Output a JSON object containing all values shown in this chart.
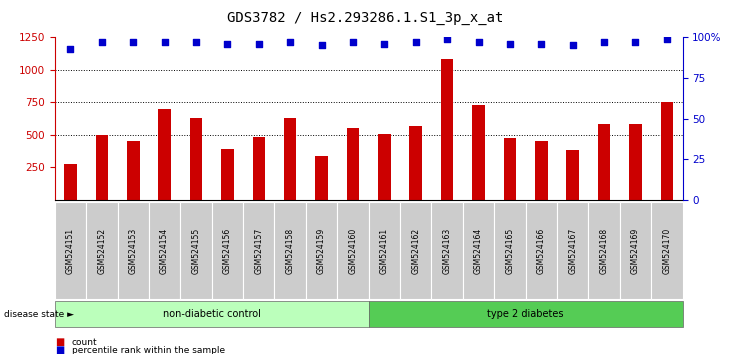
{
  "title": "GDS3782 / Hs2.293286.1.S1_3p_x_at",
  "samples": [
    "GSM524151",
    "GSM524152",
    "GSM524153",
    "GSM524154",
    "GSM524155",
    "GSM524156",
    "GSM524157",
    "GSM524158",
    "GSM524159",
    "GSM524160",
    "GSM524161",
    "GSM524162",
    "GSM524163",
    "GSM524164",
    "GSM524165",
    "GSM524166",
    "GSM524167",
    "GSM524168",
    "GSM524169",
    "GSM524170"
  ],
  "counts": [
    280,
    500,
    455,
    700,
    630,
    390,
    480,
    630,
    340,
    550,
    510,
    565,
    1080,
    730,
    475,
    455,
    385,
    580,
    580,
    750
  ],
  "percentiles": [
    93,
    97,
    97,
    97,
    97,
    96,
    96,
    97,
    95,
    97,
    96,
    97,
    99,
    97,
    96,
    96,
    95,
    97,
    97,
    99
  ],
  "non_diabetic_count": 10,
  "ylim_left": [
    0,
    1250
  ],
  "ylim_right": [
    0,
    100
  ],
  "yticks_left": [
    250,
    500,
    750,
    1000,
    1250
  ],
  "yticks_right": [
    0,
    25,
    50,
    75,
    100
  ],
  "bar_color": "#cc0000",
  "dot_color": "#0000cc",
  "group1_label": "non-diabetic control",
  "group2_label": "type 2 diabetes",
  "group1_color": "#bbffbb",
  "group2_color": "#55cc55",
  "legend_count_label": "count",
  "legend_percentile_label": "percentile rank within the sample",
  "disease_state_label": "disease state",
  "bg_color": "#ffffff",
  "tick_area_color": "#cccccc",
  "title_fontsize": 10,
  "axis_fontsize": 7.5,
  "bar_width": 0.4
}
